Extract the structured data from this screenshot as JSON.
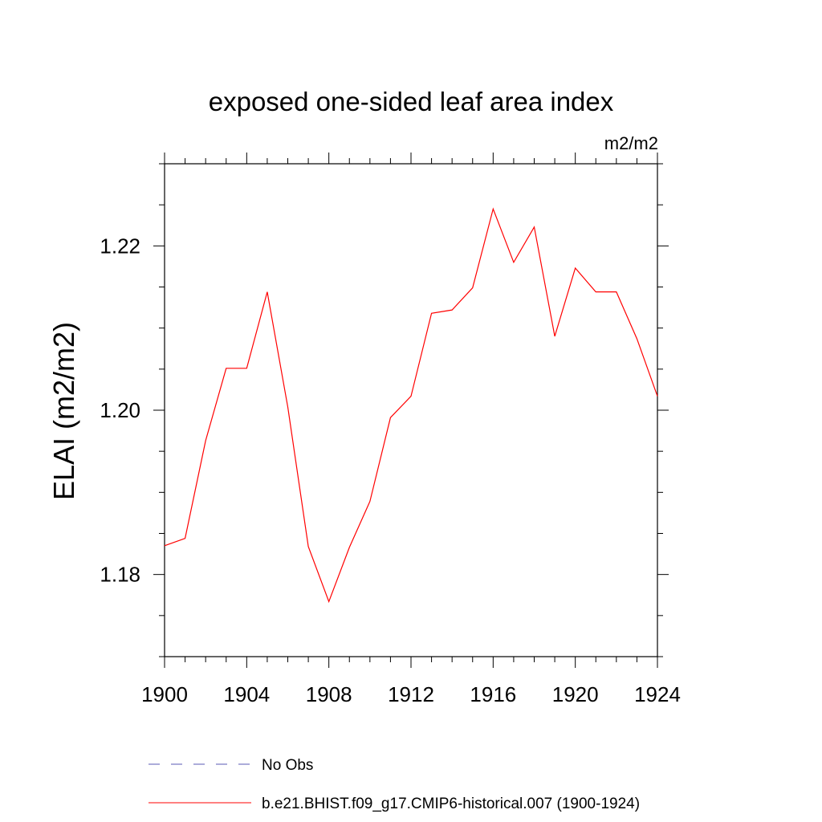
{
  "chart_data": {
    "type": "line",
    "title": "exposed one-sided leaf area index",
    "units": "m2/m2",
    "xlabel": "",
    "ylabel": "ELAI  (m2/m2)",
    "xlim": [
      1900,
      1924
    ],
    "ylim": [
      1.17,
      1.23
    ],
    "x_ticks": [
      1900,
      1904,
      1908,
      1912,
      1916,
      1920,
      1924
    ],
    "x_tick_labels": [
      "1900",
      "1904",
      "1908",
      "1912",
      "1916",
      "1920",
      "1924"
    ],
    "x_minor_step": 1,
    "y_ticks": [
      1.18,
      1.2,
      1.22
    ],
    "y_tick_labels": [
      "1.18",
      "1.20",
      "1.22"
    ],
    "y_minor_step": 0.005,
    "grid": false,
    "legend_position": "bottom",
    "series": [
      {
        "name": "No Obs",
        "color": "#5a5ab4",
        "style": "dashed",
        "x": [],
        "values": []
      },
      {
        "name": "b.e21.BHIST.f09_g17.CMIP6-historical.007 (1900-1924)",
        "color": "#ff0000",
        "style": "solid",
        "x": [
          1900,
          1901,
          1902,
          1903,
          1904,
          1905,
          1906,
          1907,
          1908,
          1909,
          1910,
          1911,
          1912,
          1913,
          1914,
          1915,
          1916,
          1917,
          1918,
          1919,
          1920,
          1921,
          1922,
          1923,
          1924
        ],
        "values": [
          1.1835,
          1.1844,
          1.1963,
          1.2051,
          1.2051,
          1.2144,
          1.2004,
          1.1834,
          1.1767,
          1.1833,
          1.1889,
          1.1991,
          1.2017,
          1.2118,
          1.2122,
          1.2149,
          1.2245,
          1.218,
          1.2223,
          1.209,
          1.2173,
          1.2144,
          1.2144,
          1.2087,
          1.2017
        ]
      }
    ]
  }
}
